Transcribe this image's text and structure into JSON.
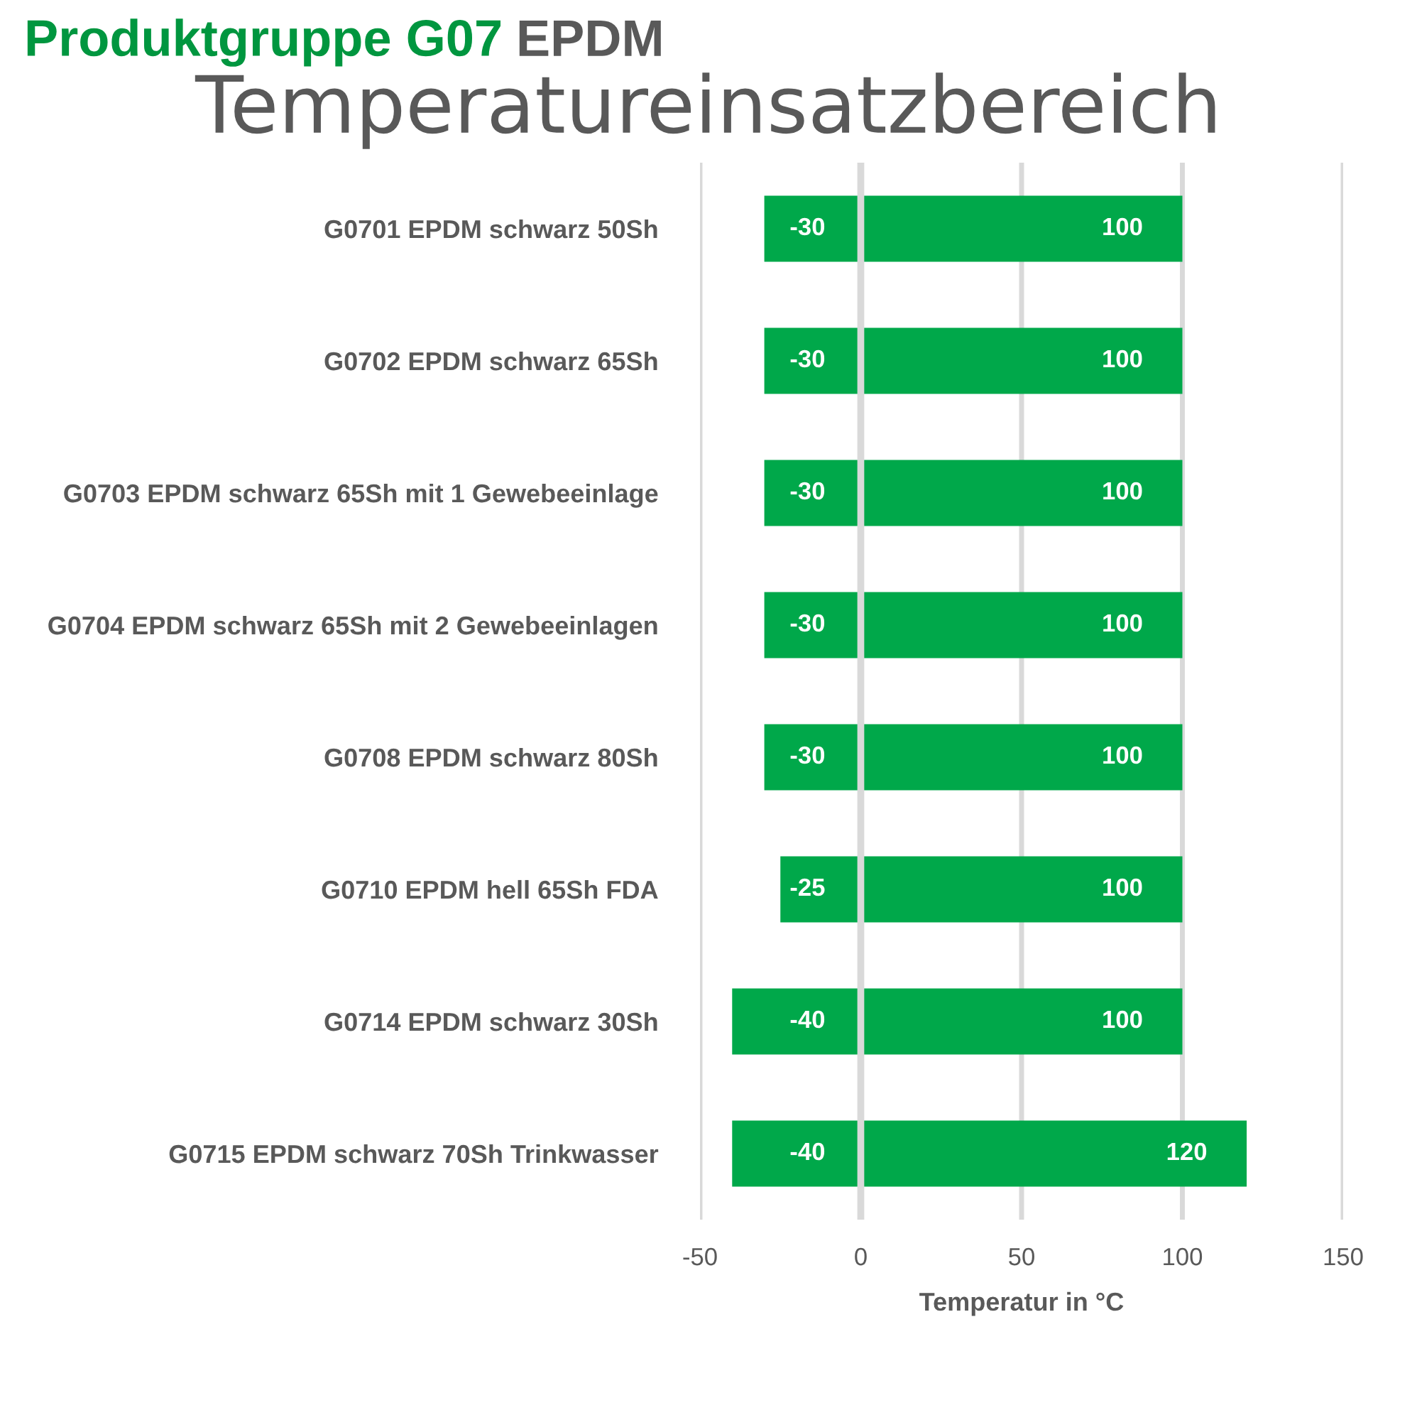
{
  "chart_data": {
    "type": "bar",
    "orientation": "horizontal",
    "stacked": true,
    "title": "Temperatureinsatzbereich",
    "subtitle": "Produktgruppe G07 EPDM",
    "xlabel": "Temperatur in °C",
    "categories": [
      "G0701 EPDM schwarz 50Sh",
      "G0702 EPDM schwarz 65Sh",
      "G0703 EPDM schwarz 65Sh mit 1 Gewebeeinlage",
      "G0704 EPDM schwarz 65Sh mit 2 Gewebeeinlagen",
      "G0708 EPDM schwarz 80Sh",
      "G0710 EPDM hell 65Sh FDA",
      "G0714 EPDM schwarz 30Sh",
      "G0715 EPDM schwarz 70Sh Trinkwasser"
    ],
    "series": [
      {
        "color": "#00a84a",
        "values": [
          -30,
          -30,
          -30,
          -30,
          -30,
          -25,
          -40,
          -40
        ]
      },
      {
        "color": "#00a84a",
        "values": [
          100,
          100,
          100,
          100,
          100,
          100,
          100,
          120
        ]
      }
    ],
    "xlim": [
      -50,
      150
    ],
    "xticks": [
      -50,
      0,
      50,
      100,
      150
    ],
    "grid": "x",
    "data_labels": true
  }
}
